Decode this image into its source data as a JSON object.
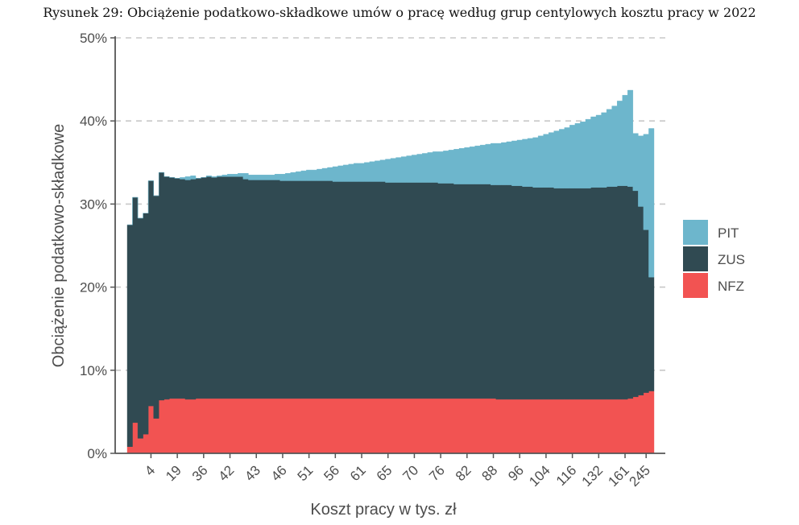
{
  "caption": "Rysunek 29: Obciążenie podatkowo-składkowe umów o pracę według grup centylowych kosztu pracy w 2022",
  "chart_data": {
    "type": "area",
    "stacked": true,
    "title": "",
    "xlabel": "Koszt pracy w tys. zł",
    "ylabel": "Obciążenie podatkowo-składkowe",
    "ylim": [
      0,
      50
    ],
    "y_ticks": [
      "0%",
      "10%",
      "20%",
      "30%",
      "40%",
      "50%"
    ],
    "y_tick_values": [
      0,
      10,
      20,
      30,
      40,
      50
    ],
    "grid": "horizontal dashed",
    "legend_position": "right",
    "x_tick_labels": [
      "4",
      "19",
      "36",
      "42",
      "43",
      "46",
      "51",
      "56",
      "61",
      "65",
      "70",
      "76",
      "82",
      "88",
      "96",
      "104",
      "116",
      "132",
      "161",
      "245"
    ],
    "x_tick_centiles": [
      5,
      10,
      15,
      20,
      25,
      30,
      35,
      40,
      45,
      50,
      55,
      60,
      65,
      70,
      75,
      80,
      85,
      90,
      95,
      99
    ],
    "centiles": [
      1,
      2,
      3,
      4,
      5,
      6,
      7,
      8,
      9,
      10,
      11,
      12,
      13,
      14,
      15,
      16,
      17,
      18,
      19,
      20,
      21,
      22,
      23,
      24,
      25,
      26,
      27,
      28,
      29,
      30,
      31,
      32,
      33,
      34,
      35,
      36,
      37,
      38,
      39,
      40,
      41,
      42,
      43,
      44,
      45,
      46,
      47,
      48,
      49,
      50,
      51,
      52,
      53,
      54,
      55,
      56,
      57,
      58,
      59,
      60,
      61,
      62,
      63,
      64,
      65,
      66,
      67,
      68,
      69,
      70,
      71,
      72,
      73,
      74,
      75,
      76,
      77,
      78,
      79,
      80,
      81,
      82,
      83,
      84,
      85,
      86,
      87,
      88,
      89,
      90,
      91,
      92,
      93,
      94,
      95,
      96,
      97,
      98,
      99,
      100
    ],
    "series": [
      {
        "name": "NFZ",
        "color": "#f25352",
        "values": [
          0.8,
          3.7,
          1.8,
          2.3,
          5.7,
          4.2,
          6.4,
          6.5,
          6.6,
          6.6,
          6.6,
          6.5,
          6.5,
          6.6,
          6.6,
          6.6,
          6.6,
          6.6,
          6.6,
          6.6,
          6.6,
          6.6,
          6.6,
          6.6,
          6.6,
          6.6,
          6.6,
          6.6,
          6.6,
          6.6,
          6.6,
          6.6,
          6.6,
          6.6,
          6.6,
          6.6,
          6.6,
          6.6,
          6.6,
          6.6,
          6.6,
          6.6,
          6.6,
          6.6,
          6.6,
          6.6,
          6.6,
          6.6,
          6.6,
          6.6,
          6.6,
          6.6,
          6.6,
          6.6,
          6.6,
          6.6,
          6.6,
          6.6,
          6.6,
          6.6,
          6.6,
          6.6,
          6.6,
          6.6,
          6.6,
          6.6,
          6.6,
          6.6,
          6.6,
          6.6,
          6.5,
          6.5,
          6.5,
          6.5,
          6.5,
          6.5,
          6.5,
          6.5,
          6.5,
          6.5,
          6.5,
          6.5,
          6.5,
          6.5,
          6.5,
          6.5,
          6.5,
          6.5,
          6.5,
          6.5,
          6.5,
          6.5,
          6.5,
          6.5,
          6.5,
          6.6,
          6.8,
          7.0,
          7.3,
          7.5
        ]
      },
      {
        "name": "ZUS",
        "color": "#304a52",
        "values": [
          26.7,
          27.1,
          26.5,
          26.6,
          27.1,
          26.8,
          27.4,
          26.8,
          26.6,
          26.5,
          26.4,
          26.4,
          26.5,
          26.5,
          26.6,
          26.7,
          26.6,
          26.7,
          26.7,
          26.7,
          26.7,
          26.7,
          26.4,
          26.3,
          26.3,
          26.3,
          26.3,
          26.3,
          26.3,
          26.2,
          26.2,
          26.2,
          26.2,
          26.2,
          26.2,
          26.2,
          26.2,
          26.2,
          26.2,
          26.1,
          26.1,
          26.1,
          26.1,
          26.1,
          26.1,
          26.1,
          26.1,
          26.1,
          26.1,
          26.0,
          26.0,
          26.0,
          26.0,
          26.0,
          26.0,
          26.0,
          26.0,
          26.0,
          26.0,
          25.9,
          25.9,
          25.9,
          25.8,
          25.8,
          25.8,
          25.8,
          25.8,
          25.8,
          25.8,
          25.7,
          25.8,
          25.8,
          25.8,
          25.7,
          25.7,
          25.6,
          25.6,
          25.5,
          25.5,
          25.5,
          25.5,
          25.4,
          25.4,
          25.4,
          25.4,
          25.4,
          25.4,
          25.4,
          25.5,
          25.5,
          25.5,
          25.6,
          25.6,
          25.7,
          25.7,
          25.5,
          24.8,
          22.7,
          19.6,
          13.7
        ]
      },
      {
        "name": "PIT",
        "color": "#6db6cc",
        "values": [
          0.0,
          0.0,
          0.0,
          0.0,
          0.0,
          0.0,
          0.0,
          0.0,
          0.0,
          0.0,
          0.2,
          0.4,
          0.4,
          0.0,
          0.0,
          0.1,
          0.1,
          0.1,
          0.2,
          0.3,
          0.3,
          0.4,
          0.7,
          0.6,
          0.6,
          0.6,
          0.6,
          0.6,
          0.7,
          0.8,
          0.9,
          1.0,
          1.1,
          1.2,
          1.3,
          1.3,
          1.4,
          1.5,
          1.6,
          1.8,
          1.9,
          2.0,
          2.1,
          2.2,
          2.2,
          2.3,
          2.4,
          2.5,
          2.6,
          2.8,
          2.9,
          3.0,
          3.1,
          3.2,
          3.3,
          3.4,
          3.5,
          3.6,
          3.7,
          3.8,
          3.9,
          4.0,
          4.2,
          4.3,
          4.4,
          4.5,
          4.6,
          4.7,
          4.8,
          5.0,
          5.0,
          5.1,
          5.2,
          5.4,
          5.5,
          5.7,
          5.8,
          6.0,
          6.2,
          6.4,
          6.6,
          6.9,
          7.1,
          7.3,
          7.6,
          7.8,
          8.0,
          8.3,
          8.5,
          8.7,
          9.0,
          9.3,
          9.7,
          10.2,
          10.9,
          11.6,
          6.9,
          8.5,
          11.5,
          17.9
        ]
      }
    ]
  }
}
